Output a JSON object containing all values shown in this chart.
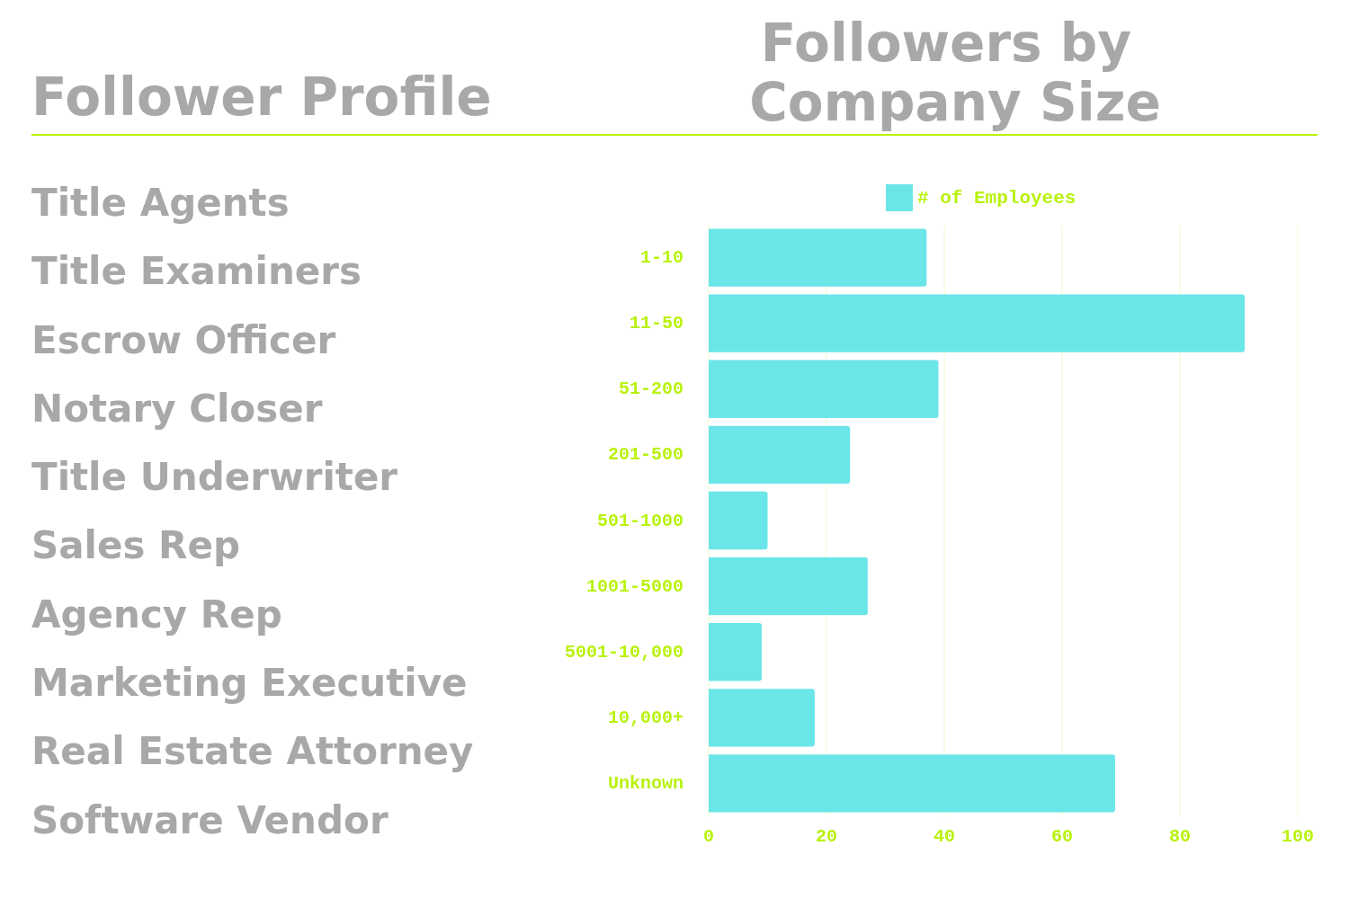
{
  "chart_data": [
    {
      "type": "other",
      "title": "Follower Profile",
      "annotations": [
        "Title Agents",
        "Title Examiners",
        "Escrow Officer",
        "Notary Closer",
        "Title Underwriter",
        "Sales Rep",
        "Agency Rep",
        "Marketing Executive",
        "Real Estate Attorney",
        "Software Vendor"
      ]
    },
    {
      "type": "bar",
      "orientation": "horizontal",
      "title": "Followers by Company Size",
      "categories": [
        "1-10",
        "11-50",
        "51-200",
        "201-500",
        "501-1000",
        "1001-5000",
        "5001-10,000",
        "10,000+",
        "Unknown"
      ],
      "series": [
        {
          "name": "# of Employees",
          "color": "#6ae6e8",
          "values": [
            37,
            91,
            39,
            24,
            10,
            27,
            9,
            18,
            69
          ]
        }
      ],
      "xlim": [
        0,
        100
      ],
      "xticks": [
        0,
        20,
        40,
        60,
        80,
        100
      ],
      "grid": "x",
      "legend": "top"
    }
  ]
}
